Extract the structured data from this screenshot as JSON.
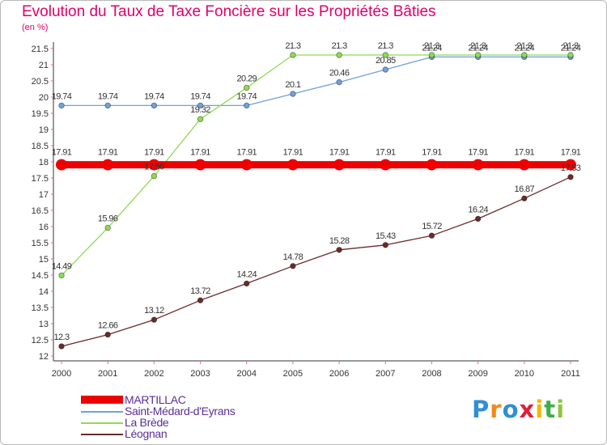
{
  "title": "Evolution du Taux de Taxe Foncière sur les Propriétés Bâties",
  "unit": "(en %)",
  "logo": {
    "text": "Proxiti",
    "letters": [
      {
        "ch": "P",
        "color": "#2f8fd6"
      },
      {
        "ch": "r",
        "color": "#f08a1c"
      },
      {
        "ch": "o",
        "color": "#2f8fd6"
      },
      {
        "ch": "x",
        "color": "#e0203a"
      },
      {
        "ch": "i",
        "color": "#f2b90a"
      },
      {
        "ch": "t",
        "color": "#3fae49"
      },
      {
        "ch": "i",
        "color": "#8bc63f"
      }
    ]
  },
  "chart_data": {
    "type": "line",
    "title": "Evolution du Taux de Taxe Foncière sur les Propriétés Bâties",
    "ylabel": "(en %)",
    "xlabel": "",
    "x": [
      "2000",
      "2001",
      "2002",
      "2003",
      "2004",
      "2005",
      "2006",
      "2007",
      "2008",
      "2009",
      "2010",
      "2011"
    ],
    "ylim": [
      12,
      21.5
    ],
    "yticks": [
      "12",
      "12.5",
      "13",
      "13.5",
      "14",
      "14.5",
      "15",
      "15.5",
      "16",
      "16.5",
      "17",
      "17.5",
      "18",
      "18.5",
      "19",
      "19.5",
      "20",
      "20.5",
      "21",
      "21.5"
    ],
    "grid": false,
    "legend_position": "bottom-left",
    "series": [
      {
        "name": "MARTILLAC",
        "color": "#ee0000",
        "thick": true,
        "values": [
          17.91,
          17.91,
          17.91,
          17.91,
          17.91,
          17.91,
          17.91,
          17.91,
          17.91,
          17.91,
          17.91,
          17.91
        ],
        "labels": [
          "17.91",
          "17.91",
          "17.91",
          "17.91",
          "17.91",
          "17.91",
          "17.91",
          "17.91",
          "17.91",
          "17.91",
          "17.91",
          "17.91"
        ]
      },
      {
        "name": "Saint-Médard-d'Eyrans",
        "color": "#6ea2d8",
        "thick": false,
        "values": [
          19.74,
          19.74,
          19.74,
          19.74,
          19.74,
          20.1,
          20.46,
          20.85,
          21.24,
          21.24,
          21.24,
          21.24
        ],
        "labels": [
          "19.74",
          "19.74",
          "19.74",
          "19.74",
          "19.74",
          "20.1",
          "20.46",
          "20.85",
          "21.24",
          "21.24",
          "21.24",
          "21.24"
        ]
      },
      {
        "name": "La Brède",
        "color": "#8ddb52",
        "thick": false,
        "values": [
          14.49,
          15.96,
          17.56,
          19.32,
          20.29,
          21.3,
          21.3,
          21.3,
          21.3,
          21.3,
          21.3,
          21.3
        ],
        "labels": [
          "14.49",
          "15.96",
          "17.56",
          "19.32",
          "20.29",
          "21.3",
          "21.3",
          "21.3",
          "21.3",
          "21.3",
          "21.3",
          "21.3"
        ]
      },
      {
        "name": "Léognan",
        "color": "#6b2a2a",
        "thick": false,
        "values": [
          12.3,
          12.66,
          13.12,
          13.72,
          14.24,
          14.78,
          15.28,
          15.43,
          15.72,
          16.24,
          16.87,
          17.53
        ],
        "labels": [
          "12.3",
          "12.66",
          "13.12",
          "13.72",
          "14.24",
          "14.78",
          "15.28",
          "15.43",
          "15.72",
          "16.24",
          "16.87",
          "17.53"
        ]
      }
    ]
  }
}
